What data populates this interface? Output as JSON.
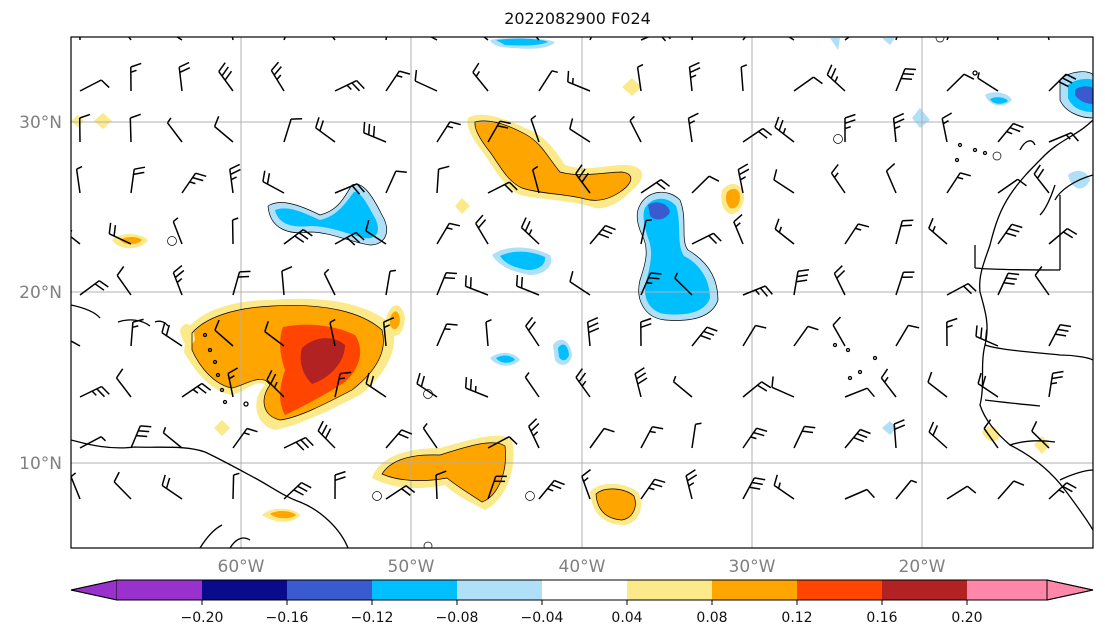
{
  "title": "2022082900 F024",
  "colors": {
    "grid": "#b0b0b0",
    "levels": [
      "#9932cc",
      "#0a0a8c",
      "#3a5ad0",
      "#00bfff",
      "#b0e0f8",
      "#ffffff",
      "#fbe98a",
      "#ffa500",
      "#ff4500",
      "#b22222",
      "#ff88aa"
    ]
  },
  "axes": {
    "lat_labels": [
      "30°N",
      "20°N",
      "10°N"
    ],
    "lon_labels": [
      "60°W",
      "50°W",
      "40°W",
      "30°W",
      "20°W"
    ]
  },
  "colorbar": {
    "ticks": [
      "−0.20",
      "−0.16",
      "−0.12",
      "−0.08",
      "−0.04",
      "0.04",
      "0.08",
      "0.12",
      "0.16",
      "0.20"
    ],
    "extend": "both"
  }
}
